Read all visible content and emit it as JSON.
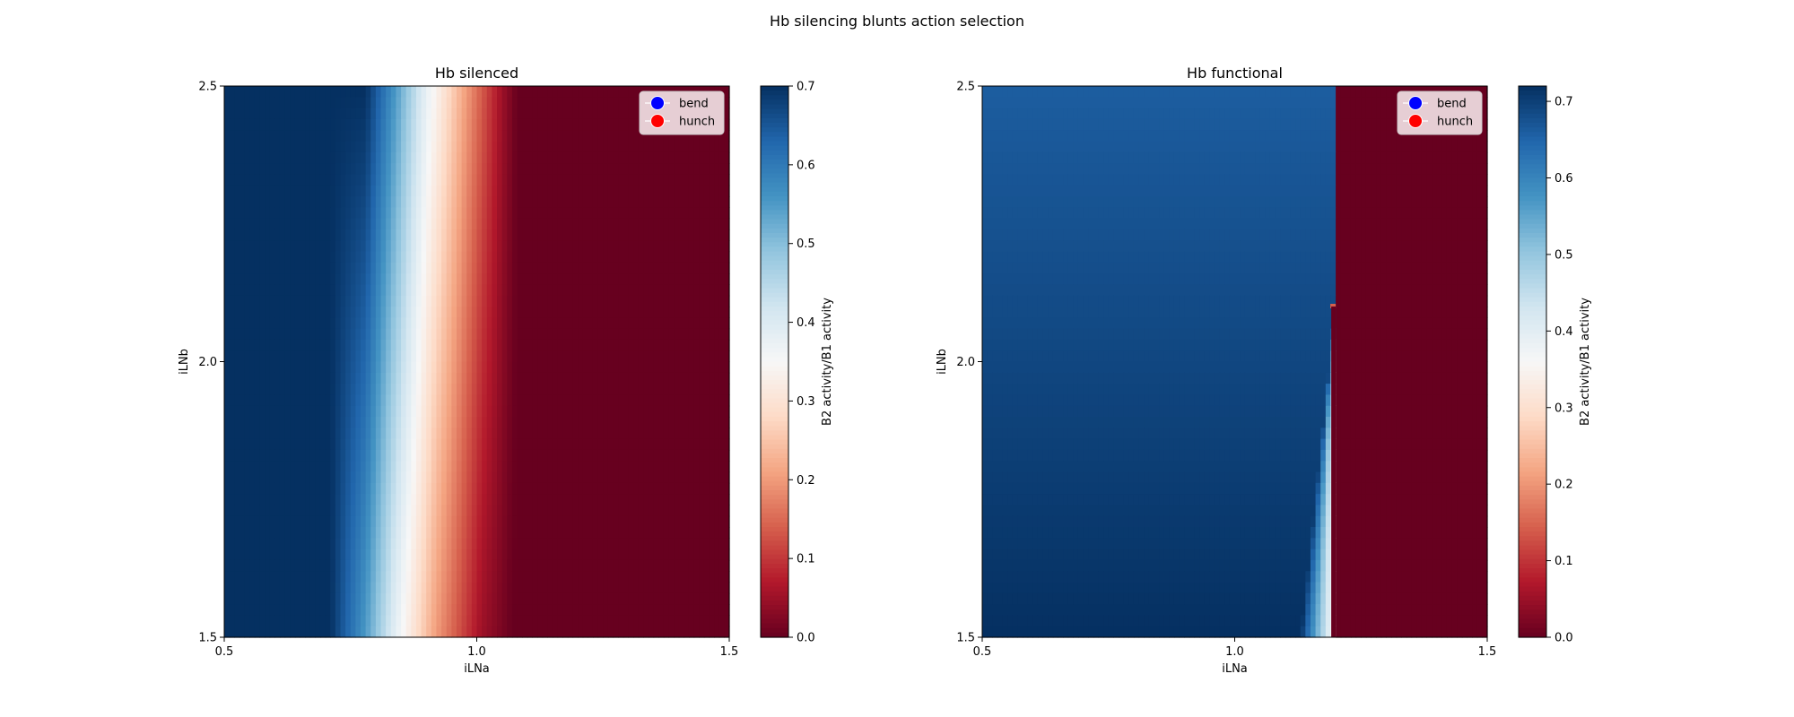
{
  "figure": {
    "title": "Hb silencing blunts action selection"
  },
  "colors": {
    "rdbu_stops": [
      "#67001f",
      "#b2182b",
      "#d6604d",
      "#f4a582",
      "#fddbc7",
      "#f7f7f7",
      "#d1e5f0",
      "#92c5de",
      "#4393c3",
      "#2166ac",
      "#053061"
    ],
    "legend_bend": "#0000ff",
    "legend_hunch": "#ff0000"
  },
  "chart_data": [
    {
      "type": "heatmap",
      "title": "Hb silenced",
      "xlabel": "iLNa",
      "ylabel": "iLNb",
      "xlim": [
        0.5,
        1.5
      ],
      "ylim": [
        1.5,
        2.5
      ],
      "x_ticks": [
        "0.5",
        "1.0",
        "1.5"
      ],
      "y_ticks": [
        "1.5",
        "2.0",
        "2.5"
      ],
      "colorbar": {
        "label": "B2 activity/B1 activity",
        "range": [
          0.0,
          0.7
        ],
        "ticks": [
          "0.0",
          "0.1",
          "0.2",
          "0.3",
          "0.4",
          "0.5",
          "0.6",
          "0.7"
        ],
        "colormap": "RdBu"
      },
      "legend": {
        "placement": "upper right",
        "entries": [
          "bend",
          "hunch"
        ]
      },
      "value_profile": {
        "description_x_at_top": [
          [
            0.5,
            0.7
          ],
          [
            0.78,
            0.7
          ],
          [
            0.84,
            0.55
          ],
          [
            0.9,
            0.38
          ],
          [
            0.98,
            0.2
          ],
          [
            1.05,
            0.05
          ],
          [
            1.08,
            0.0
          ],
          [
            1.5,
            0.0
          ]
        ],
        "description_x_at_bottom": [
          [
            0.5,
            0.7
          ],
          [
            0.71,
            0.7
          ],
          [
            0.78,
            0.55
          ],
          [
            0.84,
            0.38
          ],
          [
            0.92,
            0.2
          ],
          [
            1.01,
            0.05
          ],
          [
            1.07,
            0.0
          ],
          [
            1.5,
            0.0
          ]
        ]
      }
    },
    {
      "type": "heatmap",
      "title": "Hb functional",
      "xlabel": "iLNa",
      "ylabel": "iLNb",
      "xlim": [
        0.5,
        1.5
      ],
      "ylim": [
        1.5,
        2.5
      ],
      "x_ticks": [
        "0.5",
        "1.0",
        "1.5"
      ],
      "y_ticks": [
        "1.5",
        "2.0",
        "2.5"
      ],
      "colorbar": {
        "label": "B2 activity/B1 activity",
        "range": [
          0.0,
          0.72
        ],
        "ticks": [
          "0.0",
          "0.1",
          "0.2",
          "0.3",
          "0.4",
          "0.5",
          "0.6",
          "0.7"
        ],
        "colormap": "RdBu"
      },
      "legend": {
        "placement": "upper right",
        "entries": [
          "bend",
          "hunch"
        ]
      },
      "value_profile": {
        "bend_value_at_top": 0.66,
        "bend_value_at_bottom": 0.72,
        "switch_x": 1.2,
        "switch_x_bottom": 1.2,
        "ramp_start_x_bottom": 1.13,
        "ramp_start_x_top": 1.2,
        "hunch_value": 0.0
      }
    }
  ]
}
